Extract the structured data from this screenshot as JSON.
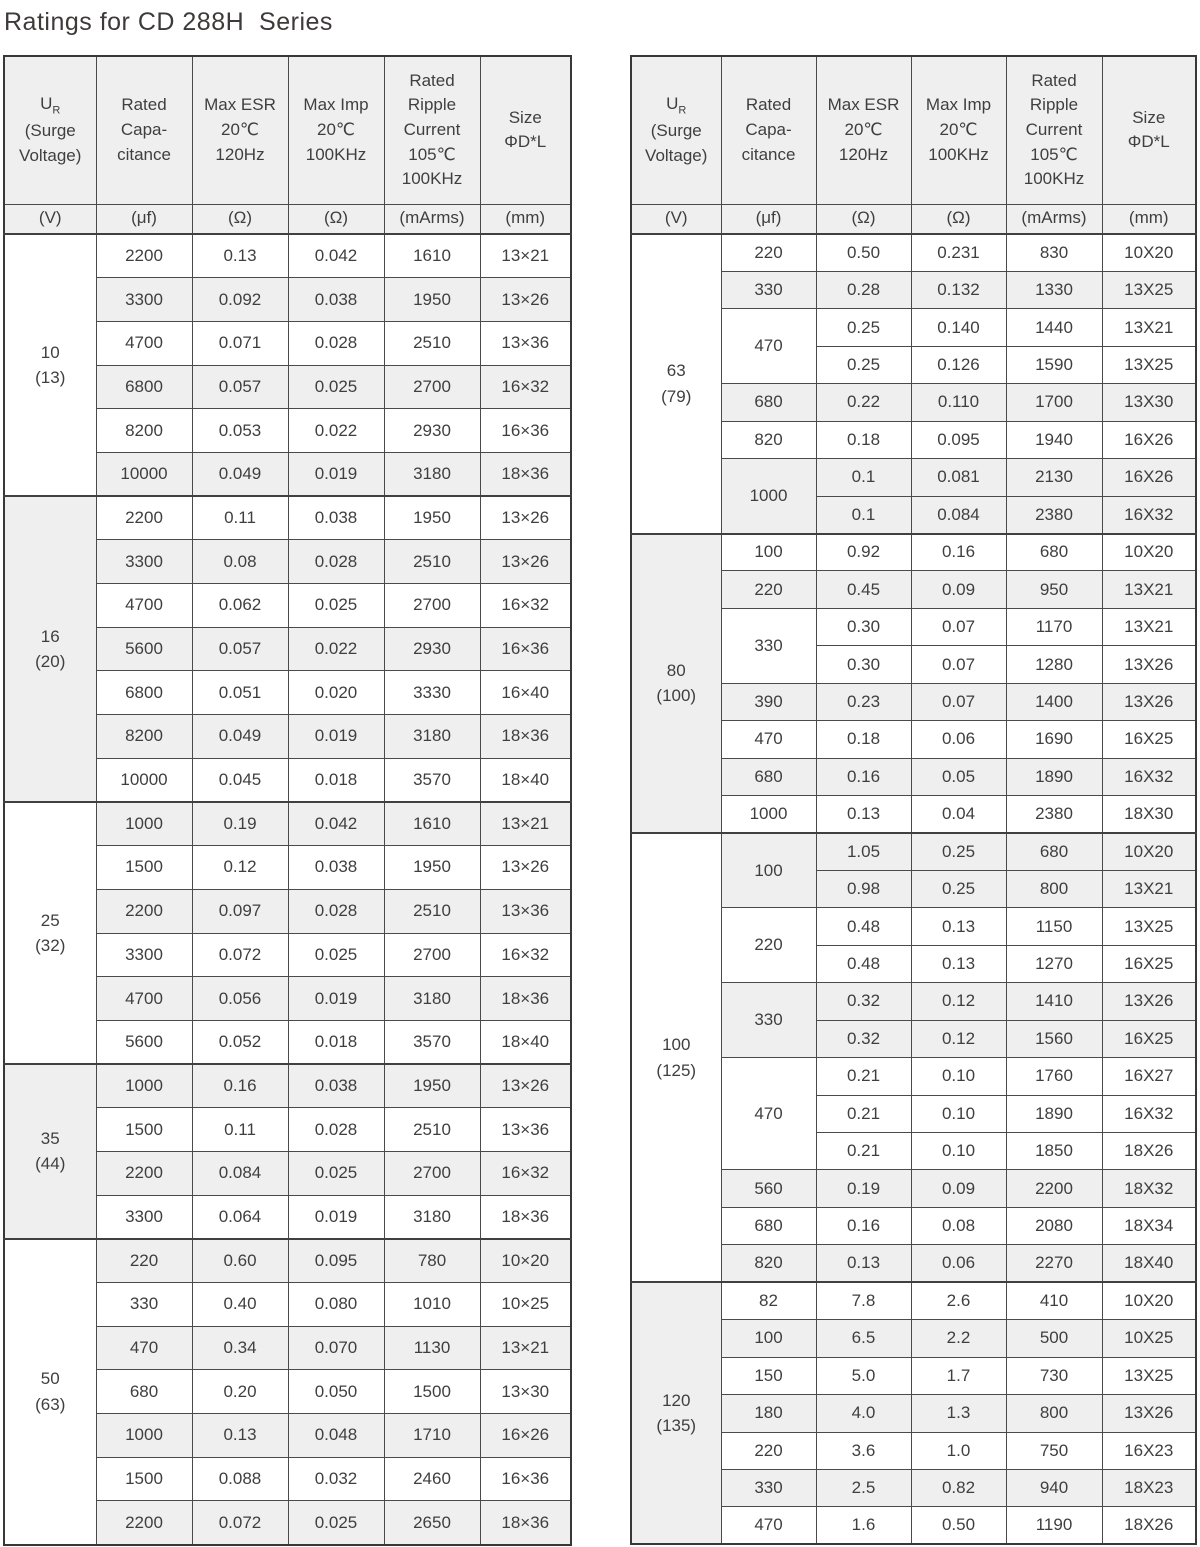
{
  "title": "Ratings for CD 288H  Series",
  "header": {
    "voltage": {
      "symbol": "U",
      "sub": "R",
      "rest": "(Surge\nVoltage)"
    },
    "capacitance": "Rated\nCapa-\ncitance",
    "esr": "Max ESR\n20℃\n120Hz",
    "imp": "Max Imp\n20℃\n100KHz",
    "ripple": "Rated\nRipple\nCurrent\n105℃\n100KHz",
    "size": "Size\nΦD*L",
    "units": [
      "(V)",
      "(μf)",
      "(Ω)",
      "(Ω)",
      "(mArms)",
      "(mm)"
    ]
  },
  "colors": {
    "row_shade": "#efefef",
    "border": "#404040",
    "text": "#3f3f3f"
  },
  "tables": [
    {
      "side": "left",
      "groups": [
        {
          "voltage": "10",
          "surge": "(13)",
          "caps": [
            {
              "cap": "2200",
              "rows": [
                [
                  "0.13",
                  "0.042",
                  "1610",
                  "13×21"
                ]
              ]
            },
            {
              "cap": "3300",
              "rows": [
                [
                  "0.092",
                  "0.038",
                  "1950",
                  "13×26"
                ]
              ]
            },
            {
              "cap": "4700",
              "rows": [
                [
                  "0.071",
                  "0.028",
                  "2510",
                  "13×36"
                ]
              ]
            },
            {
              "cap": "6800",
              "rows": [
                [
                  "0.057",
                  "0.025",
                  "2700",
                  "16×32"
                ]
              ]
            },
            {
              "cap": "8200",
              "rows": [
                [
                  "0.053",
                  "0.022",
                  "2930",
                  "16×36"
                ]
              ]
            },
            {
              "cap": "10000",
              "rows": [
                [
                  "0.049",
                  "0.019",
                  "3180",
                  "18×36"
                ]
              ]
            }
          ]
        },
        {
          "voltage": "16",
          "surge": "(20)",
          "caps": [
            {
              "cap": "2200",
              "rows": [
                [
                  "0.11",
                  "0.038",
                  "1950",
                  "13×26"
                ]
              ]
            },
            {
              "cap": "3300",
              "rows": [
                [
                  "0.08",
                  "0.028",
                  "2510",
                  "13×26"
                ]
              ]
            },
            {
              "cap": "4700",
              "rows": [
                [
                  "0.062",
                  "0.025",
                  "2700",
                  "16×32"
                ]
              ]
            },
            {
              "cap": "5600",
              "rows": [
                [
                  "0.057",
                  "0.022",
                  "2930",
                  "16×36"
                ]
              ]
            },
            {
              "cap": "6800",
              "rows": [
                [
                  "0.051",
                  "0.020",
                  "3330",
                  "16×40"
                ]
              ]
            },
            {
              "cap": "8200",
              "rows": [
                [
                  "0.049",
                  "0.019",
                  "3180",
                  "18×36"
                ]
              ]
            },
            {
              "cap": "10000",
              "rows": [
                [
                  "0.045",
                  "0.018",
                  "3570",
                  "18×40"
                ]
              ]
            }
          ]
        },
        {
          "voltage": "25",
          "surge": "(32)",
          "caps": [
            {
              "cap": "1000",
              "rows": [
                [
                  "0.19",
                  "0.042",
                  "1610",
                  "13×21"
                ]
              ]
            },
            {
              "cap": "1500",
              "rows": [
                [
                  "0.12",
                  "0.038",
                  "1950",
                  "13×26"
                ]
              ]
            },
            {
              "cap": "2200",
              "rows": [
                [
                  "0.097",
                  "0.028",
                  "2510",
                  "13×36"
                ]
              ]
            },
            {
              "cap": "3300",
              "rows": [
                [
                  "0.072",
                  "0.025",
                  "2700",
                  "16×32"
                ]
              ]
            },
            {
              "cap": "4700",
              "rows": [
                [
                  "0.056",
                  "0.019",
                  "3180",
                  "18×36"
                ]
              ]
            },
            {
              "cap": "5600",
              "rows": [
                [
                  "0.052",
                  "0.018",
                  "3570",
                  "18×40"
                ]
              ]
            }
          ]
        },
        {
          "voltage": "35",
          "surge": "(44)",
          "caps": [
            {
              "cap": "1000",
              "rows": [
                [
                  "0.16",
                  "0.038",
                  "1950",
                  "13×26"
                ]
              ]
            },
            {
              "cap": "1500",
              "rows": [
                [
                  "0.11",
                  "0.028",
                  "2510",
                  "13×36"
                ]
              ]
            },
            {
              "cap": "2200",
              "rows": [
                [
                  "0.084",
                  "0.025",
                  "2700",
                  "16×32"
                ]
              ]
            },
            {
              "cap": "3300",
              "rows": [
                [
                  "0.064",
                  "0.019",
                  "3180",
                  "18×36"
                ]
              ]
            }
          ]
        },
        {
          "voltage": "50",
          "surge": "(63)",
          "caps": [
            {
              "cap": "220",
              "rows": [
                [
                  "0.60",
                  "0.095",
                  "780",
                  "10×20"
                ]
              ]
            },
            {
              "cap": "330",
              "rows": [
                [
                  "0.40",
                  "0.080",
                  "1010",
                  "10×25"
                ]
              ]
            },
            {
              "cap": "470",
              "rows": [
                [
                  "0.34",
                  "0.070",
                  "1130",
                  "13×21"
                ]
              ]
            },
            {
              "cap": "680",
              "rows": [
                [
                  "0.20",
                  "0.050",
                  "1500",
                  "13×30"
                ]
              ]
            },
            {
              "cap": "1000",
              "rows": [
                [
                  "0.13",
                  "0.048",
                  "1710",
                  "16×26"
                ]
              ]
            },
            {
              "cap": "1500",
              "rows": [
                [
                  "0.088",
                  "0.032",
                  "2460",
                  "16×36"
                ]
              ]
            },
            {
              "cap": "2200",
              "rows": [
                [
                  "0.072",
                  "0.025",
                  "2650",
                  "18×36"
                ]
              ]
            }
          ]
        }
      ]
    },
    {
      "side": "right",
      "groups": [
        {
          "voltage": "63",
          "surge": "(79)",
          "caps": [
            {
              "cap": "220",
              "rows": [
                [
                  "0.50",
                  "0.231",
                  "830",
                  "10X20"
                ]
              ]
            },
            {
              "cap": "330",
              "rows": [
                [
                  "0.28",
                  "0.132",
                  "1330",
                  "13X25"
                ]
              ]
            },
            {
              "cap": "470",
              "rows": [
                [
                  "0.25",
                  "0.140",
                  "1440",
                  "13X21"
                ],
                [
                  "0.25",
                  "0.126",
                  "1590",
                  "13X25"
                ]
              ]
            },
            {
              "cap": "680",
              "rows": [
                [
                  "0.22",
                  "0.110",
                  "1700",
                  "13X30"
                ]
              ]
            },
            {
              "cap": "820",
              "rows": [
                [
                  "0.18",
                  "0.095",
                  "1940",
                  "16X26"
                ]
              ]
            },
            {
              "cap": "1000",
              "rows": [
                [
                  "0.1",
                  "0.081",
                  "2130",
                  "16X26"
                ],
                [
                  "0.1",
                  "0.084",
                  "2380",
                  "16X32"
                ]
              ]
            }
          ]
        },
        {
          "voltage": "80",
          "surge": "(100)",
          "caps": [
            {
              "cap": "100",
              "rows": [
                [
                  "0.92",
                  "0.16",
                  "680",
                  "10X20"
                ]
              ]
            },
            {
              "cap": "220",
              "rows": [
                [
                  "0.45",
                  "0.09",
                  "950",
                  "13X21"
                ]
              ]
            },
            {
              "cap": "330",
              "rows": [
                [
                  "0.30",
                  "0.07",
                  "1170",
                  "13X21"
                ],
                [
                  "0.30",
                  "0.07",
                  "1280",
                  "13X26"
                ]
              ]
            },
            {
              "cap": "390",
              "rows": [
                [
                  "0.23",
                  "0.07",
                  "1400",
                  "13X26"
                ]
              ]
            },
            {
              "cap": "470",
              "rows": [
                [
                  "0.18",
                  "0.06",
                  "1690",
                  "16X25"
                ]
              ]
            },
            {
              "cap": "680",
              "rows": [
                [
                  "0.16",
                  "0.05",
                  "1890",
                  "16X32"
                ]
              ]
            },
            {
              "cap": "1000",
              "rows": [
                [
                  "0.13",
                  "0.04",
                  "2380",
                  "18X30"
                ]
              ]
            }
          ]
        },
        {
          "voltage": "100",
          "surge": "(125)",
          "caps": [
            {
              "cap": "100",
              "rows": [
                [
                  "1.05",
                  "0.25",
                  "680",
                  "10X20"
                ],
                [
                  "0.98",
                  "0.25",
                  "800",
                  "13X21"
                ]
              ]
            },
            {
              "cap": "220",
              "rows": [
                [
                  "0.48",
                  "0.13",
                  "1150",
                  "13X25"
                ],
                [
                  "0.48",
                  "0.13",
                  "1270",
                  "16X25"
                ]
              ]
            },
            {
              "cap": "330",
              "rows": [
                [
                  "0.32",
                  "0.12",
                  "1410",
                  "13X26"
                ],
                [
                  "0.32",
                  "0.12",
                  "1560",
                  "16X25"
                ]
              ]
            },
            {
              "cap": "470",
              "rows": [
                [
                  "0.21",
                  "0.10",
                  "1760",
                  "16X27"
                ],
                [
                  "0.21",
                  "0.10",
                  "1890",
                  "16X32"
                ],
                [
                  "0.21",
                  "0.10",
                  "1850",
                  "18X26"
                ]
              ]
            },
            {
              "cap": "560",
              "rows": [
                [
                  "0.19",
                  "0.09",
                  "2200",
                  "18X32"
                ]
              ]
            },
            {
              "cap": "680",
              "rows": [
                [
                  "0.16",
                  "0.08",
                  "2080",
                  "18X34"
                ]
              ]
            },
            {
              "cap": "820",
              "rows": [
                [
                  "0.13",
                  "0.06",
                  "2270",
                  "18X40"
                ]
              ]
            }
          ]
        },
        {
          "voltage": "120",
          "surge": "(135)",
          "caps": [
            {
              "cap": "82",
              "rows": [
                [
                  "7.8",
                  "2.6",
                  "410",
                  "10X20"
                ]
              ]
            },
            {
              "cap": "100",
              "rows": [
                [
                  "6.5",
                  "2.2",
                  "500",
                  "10X25"
                ]
              ]
            },
            {
              "cap": "150",
              "rows": [
                [
                  "5.0",
                  "1.7",
                  "730",
                  "13X25"
                ]
              ]
            },
            {
              "cap": "180",
              "rows": [
                [
                  "4.0",
                  "1.3",
                  "800",
                  "13X26"
                ]
              ]
            },
            {
              "cap": "220",
              "rows": [
                [
                  "3.6",
                  "1.0",
                  "750",
                  "16X23"
                ]
              ]
            },
            {
              "cap": "330",
              "rows": [
                [
                  "2.5",
                  "0.82",
                  "940",
                  "18X23"
                ]
              ]
            },
            {
              "cap": "470",
              "rows": [
                [
                  "1.6",
                  "0.50",
                  "1190",
                  "18X26"
                ]
              ]
            }
          ]
        }
      ]
    }
  ]
}
